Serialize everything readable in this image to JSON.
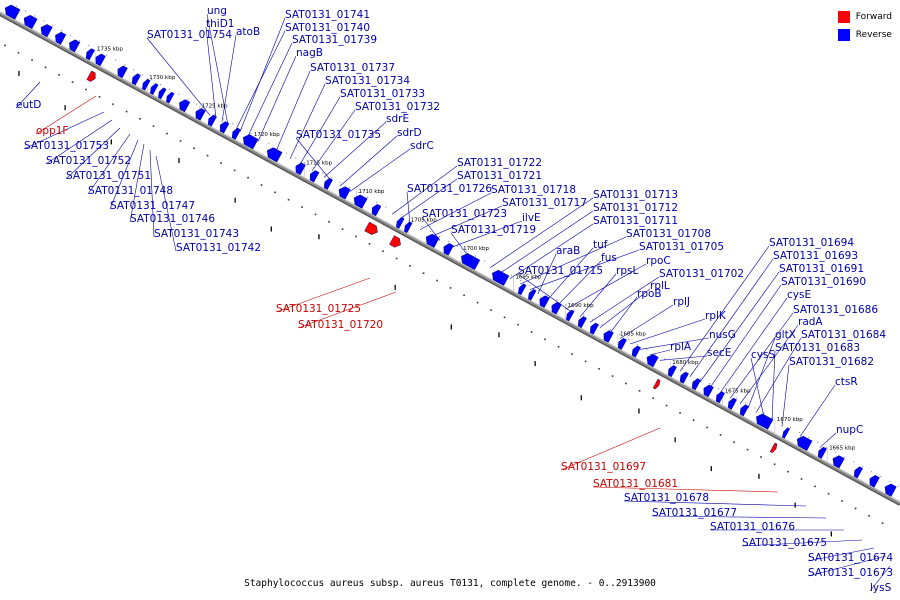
{
  "colors": {
    "forward": "#ff0000",
    "reverse": "#0000ff",
    "forward_label": "#cc0000",
    "reverse_label": "#0000aa",
    "backbone": "#8a8a8a"
  },
  "legend": {
    "forward": "Forward",
    "reverse": "Reverse"
  },
  "caption": "Staphylococcus aureus subsp. aureus T0131, complete genome. - 0..2913900",
  "ticks": [
    "1735 kbp",
    "1730 kbp",
    "1725 kbp",
    "1720 kbp",
    "1715 kbp",
    "1710 kbp",
    "1705 kbp",
    "1700 kbp",
    "1695 kbp",
    "1690 kbp",
    "1685 kbp",
    "1680 kbp",
    "1675 kbp",
    "1670 kbp",
    "1665 kbp"
  ],
  "genes_upper": [
    "ung",
    "thiD1",
    "SAT0131_01754",
    "atoB",
    "SAT0131_01741",
    "SAT0131_01740",
    "SAT0131_01739",
    "nagB",
    "SAT0131_01737",
    "SAT0131_01734",
    "SAT0131_01733",
    "SAT0131_01732",
    "sdrE",
    "SAT0131_01735",
    "sdrD",
    "sdrC",
    "SAT0131_01722",
    "SAT0131_01721",
    "SAT0131_01726",
    "SAT0131_01718",
    "SAT0131_01717",
    "SAT0131_01723",
    "ilvE",
    "SAT0131_01719",
    "SAT0131_01713",
    "SAT0131_01712",
    "SAT0131_01711",
    "SAT0131_01708",
    "SAT0131_01705",
    "araB",
    "tuf",
    "fus",
    "rpoC",
    "SAT0131_01715",
    "rpsL",
    "SAT0131_01702",
    "rplL",
    "rpoB",
    "rplJ",
    "rplK",
    "nusG",
    "rplA",
    "secE",
    "SAT0131_01694",
    "SAT0131_01693",
    "SAT0131_01691",
    "SAT0131_01690",
    "cysE",
    "SAT0131_01686",
    "radA",
    "gltX",
    "SAT0131_01684",
    "cysS",
    "SAT0131_01683",
    "SAT0131_01682",
    "ctsR",
    "nupC"
  ],
  "genes_lower_left": [
    "eutD",
    "opp1F",
    "SAT0131_01753",
    "SAT0131_01752",
    "SAT0131_01751",
    "SAT0131_01748",
    "SAT0131_01747",
    "SAT0131_01746",
    "SAT0131_01743",
    "SAT0131_01742",
    "SAT0131_01725",
    "SAT0131_01720"
  ],
  "genes_lower_right": [
    "SAT0131_01697",
    "SAT0131_01681",
    "SAT0131_01678",
    "SAT0131_01677",
    "SAT0131_01676",
    "SAT0131_01675",
    "SAT0131_01674",
    "SAT0131_01673",
    "lysS"
  ]
}
